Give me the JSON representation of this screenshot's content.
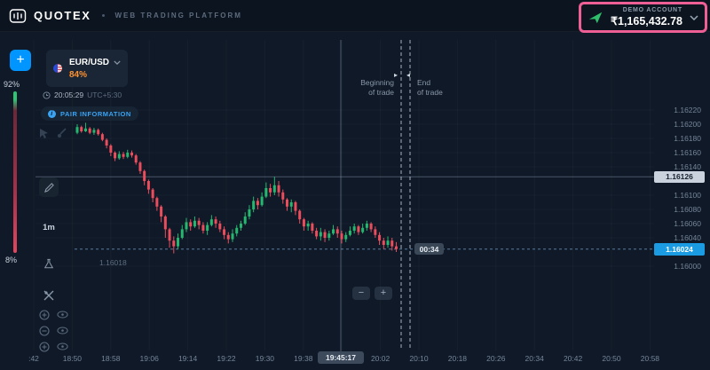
{
  "header": {
    "brand": "QUOTEX",
    "subtitle": "WEB TRADING PLATFORM",
    "account": {
      "label": "DEMO ACCOUNT",
      "balance": "₹1,165,432.78"
    }
  },
  "left_rail": {
    "plus": "+",
    "sentiment_up": "92%",
    "sentiment_down": "8%",
    "timeframe": "1m"
  },
  "asset_panel": {
    "pair": "EUR/USD",
    "payout": "84%",
    "clock_time": "20:05:29",
    "clock_zone": "UTC+5:30",
    "pair_info": "PAIR INFORMATION"
  },
  "trade_markers": {
    "beginning_l1": "Beginning",
    "beginning_l2": "of trade",
    "end_l1": "End",
    "end_l2": "of trade",
    "countdown": "00:34"
  },
  "zoom": {
    "minus": "−",
    "plus": "+"
  },
  "icons": {
    "trade_arrow_right": "▸",
    "trade_arrow_left": "◂"
  },
  "colors": {
    "up": "#25b76f",
    "down": "#eb4d5c",
    "accent_blue": "#0095ff",
    "payout_orange": "#ff9231",
    "current_price_badge": "#1b9be2",
    "annotation_pink": "#ee5f96",
    "pair_info_blue": "#3aa3f2",
    "plane_green": "#2fbf6c"
  },
  "chart_data": {
    "type": "candlestick",
    "symbol": "EUR/USD",
    "interval": "1m",
    "ylim": [
      1.16,
      1.1624
    ],
    "price_axis_labels": [
      "1.16220",
      "1.16200",
      "1.16180",
      "1.16160",
      "1.16140",
      "1.16100",
      "1.16080",
      "1.16060",
      "1.16040",
      "1.16000"
    ],
    "time_axis_labels": [
      ":42",
      "18:50",
      "18:58",
      "19:06",
      "19:14",
      "19:22",
      "19:30",
      "19:38",
      "20:02",
      "20:10",
      "20:18",
      "20:26",
      "20:34",
      "20:42",
      "20:50",
      "20:58"
    ],
    "crosshair": {
      "time_badge": "19:45:17",
      "price_badge": "1.16126"
    },
    "current_price": "1.16024",
    "low_annotation": "1.16018",
    "price_base": 1.16,
    "price_unit": 1e-05,
    "candles_ohlc": [
      [
        188,
        200,
        186,
        196
      ],
      [
        196,
        198,
        188,
        190
      ],
      [
        190,
        202,
        189,
        194
      ],
      [
        194,
        196,
        186,
        188
      ],
      [
        188,
        195,
        185,
        192
      ],
      [
        192,
        194,
        184,
        186
      ],
      [
        186,
        188,
        176,
        178
      ],
      [
        178,
        180,
        166,
        170
      ],
      [
        170,
        172,
        155,
        160
      ],
      [
        160,
        162,
        148,
        152
      ],
      [
        152,
        162,
        150,
        158
      ],
      [
        158,
        161,
        151,
        154
      ],
      [
        154,
        164,
        152,
        160
      ],
      [
        160,
        163,
        153,
        156
      ],
      [
        156,
        158,
        143,
        146
      ],
      [
        146,
        148,
        130,
        134
      ],
      [
        134,
        136,
        114,
        120
      ],
      [
        120,
        122,
        102,
        108
      ],
      [
        108,
        110,
        90,
        96
      ],
      [
        96,
        98,
        78,
        84
      ],
      [
        84,
        86,
        62,
        70
      ],
      [
        70,
        72,
        40,
        52
      ],
      [
        52,
        54,
        26,
        36
      ],
      [
        36,
        42,
        18,
        28
      ],
      [
        28,
        46,
        24,
        40
      ],
      [
        40,
        58,
        38,
        52
      ],
      [
        52,
        68,
        48,
        62
      ],
      [
        62,
        66,
        50,
        56
      ],
      [
        56,
        70,
        54,
        64
      ],
      [
        64,
        68,
        52,
        58
      ],
      [
        58,
        62,
        46,
        50
      ],
      [
        50,
        62,
        44,
        58
      ],
      [
        58,
        72,
        56,
        66
      ],
      [
        66,
        70,
        54,
        60
      ],
      [
        60,
        64,
        48,
        52
      ],
      [
        52,
        56,
        38,
        44
      ],
      [
        44,
        48,
        32,
        38
      ],
      [
        38,
        52,
        34,
        46
      ],
      [
        46,
        58,
        42,
        54
      ],
      [
        54,
        64,
        50,
        60
      ],
      [
        60,
        76,
        58,
        70
      ],
      [
        70,
        86,
        66,
        80
      ],
      [
        80,
        98,
        76,
        92
      ],
      [
        92,
        96,
        80,
        86
      ],
      [
        86,
        104,
        84,
        98
      ],
      [
        98,
        118,
        96,
        110
      ],
      [
        110,
        116,
        98,
        104
      ],
      [
        104,
        126,
        100,
        114
      ],
      [
        114,
        120,
        98,
        104
      ],
      [
        104,
        108,
        88,
        94
      ],
      [
        94,
        96,
        78,
        84
      ],
      [
        84,
        94,
        76,
        90
      ],
      [
        90,
        92,
        72,
        78
      ],
      [
        78,
        80,
        60,
        66
      ],
      [
        66,
        68,
        50,
        56
      ],
      [
        56,
        64,
        50,
        60
      ],
      [
        60,
        62,
        46,
        50
      ],
      [
        50,
        54,
        38,
        42
      ],
      [
        42,
        54,
        36,
        48
      ],
      [
        48,
        52,
        34,
        40
      ],
      [
        40,
        50,
        36,
        46
      ],
      [
        46,
        58,
        44,
        52
      ],
      [
        52,
        56,
        40,
        46
      ],
      [
        46,
        50,
        32,
        38
      ],
      [
        38,
        48,
        34,
        44
      ],
      [
        44,
        56,
        42,
        50
      ],
      [
        50,
        60,
        46,
        56
      ],
      [
        56,
        58,
        44,
        48
      ],
      [
        48,
        60,
        46,
        54
      ],
      [
        54,
        64,
        50,
        60
      ],
      [
        60,
        62,
        48,
        52
      ],
      [
        52,
        56,
        40,
        44
      ],
      [
        44,
        48,
        30,
        36
      ],
      [
        36,
        40,
        24,
        30
      ],
      [
        30,
        42,
        26,
        36
      ],
      [
        36,
        40,
        22,
        28
      ],
      [
        28,
        34,
        20,
        24
      ]
    ]
  }
}
